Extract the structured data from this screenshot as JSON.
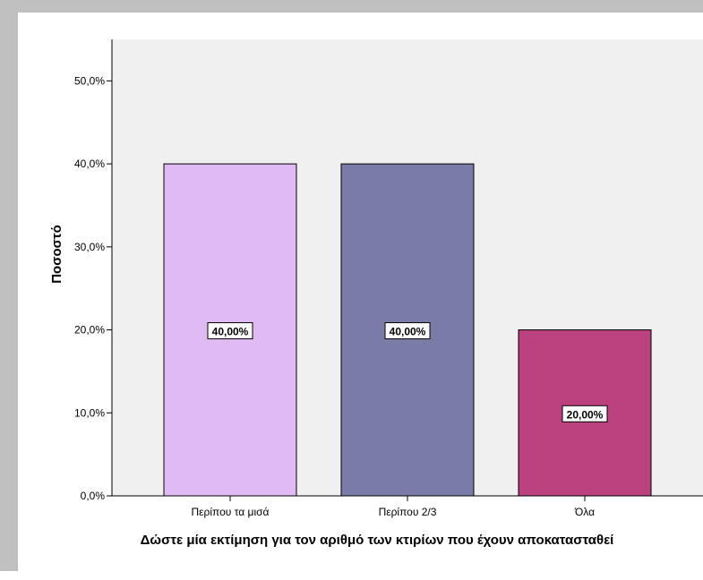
{
  "chart_data": {
    "type": "bar",
    "categories": [
      "Περίπου τα μισά",
      "Περίπου 2/3",
      "Όλα"
    ],
    "values": [
      40.0,
      40.0,
      20.0
    ],
    "value_labels": [
      "40,00%",
      "40,00%",
      "20,00%"
    ],
    "colors": [
      "#dfbaf3",
      "#7b7ba8",
      "#bc417f"
    ],
    "ylabel": "Ποσοστό",
    "xlabel": "Δώστε μία εκτίμηση για τον αριθμό των κτιρίων που έχουν αποκατασταθεί",
    "ylim": [
      0,
      55
    ],
    "yticks": [
      0,
      10,
      20,
      30,
      40,
      50
    ],
    "ytick_labels": [
      "0,0%",
      "10,0%",
      "20,0%",
      "30,0%",
      "40,0%",
      "50,0%"
    ],
    "plot_background": "#f0f0f0",
    "grid": false
  }
}
